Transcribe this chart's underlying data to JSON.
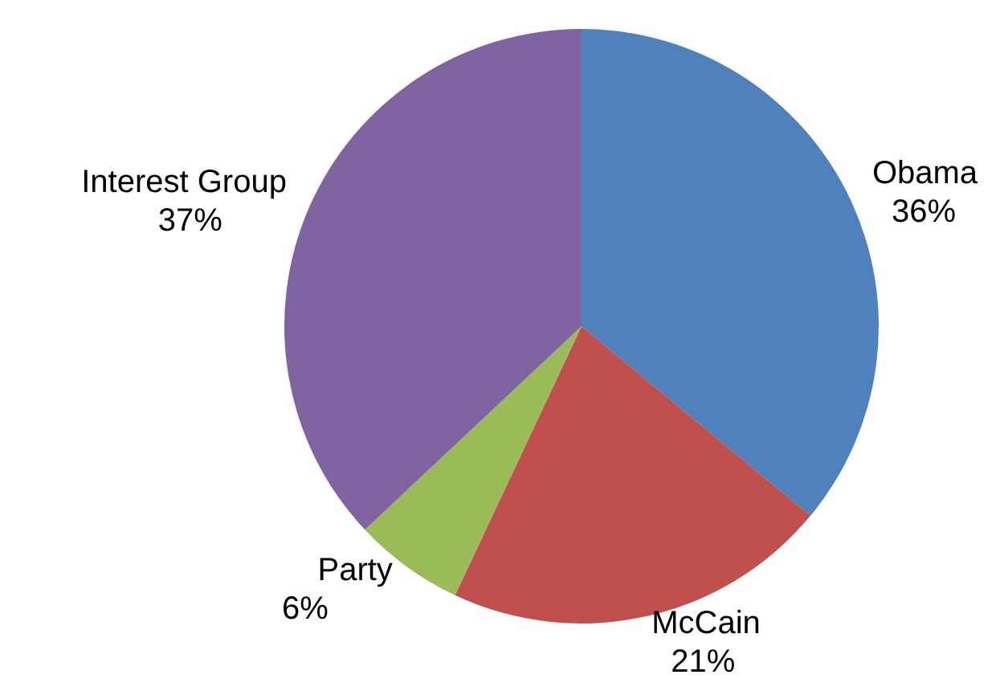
{
  "chart_data": {
    "type": "pie",
    "categories": [
      "Obama",
      "McCain",
      "Party",
      "Interest Group"
    ],
    "values": [
      36,
      21,
      6,
      37
    ],
    "value_labels": [
      "36%",
      "21%",
      "6%",
      "37%"
    ],
    "colors": [
      "#4f81bd",
      "#c0504d",
      "#9bbb59",
      "#8064a2"
    ],
    "legend": false
  }
}
